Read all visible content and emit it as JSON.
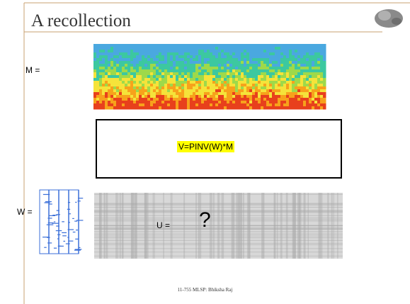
{
  "slide": {
    "title": "A recollection",
    "m_label": "M =",
    "equation": "V=PINV(W)*M",
    "w_label": "W =",
    "u_label": "U =",
    "question": "?",
    "footer": "11-755 MLSP: Bhiksha Raj"
  }
}
